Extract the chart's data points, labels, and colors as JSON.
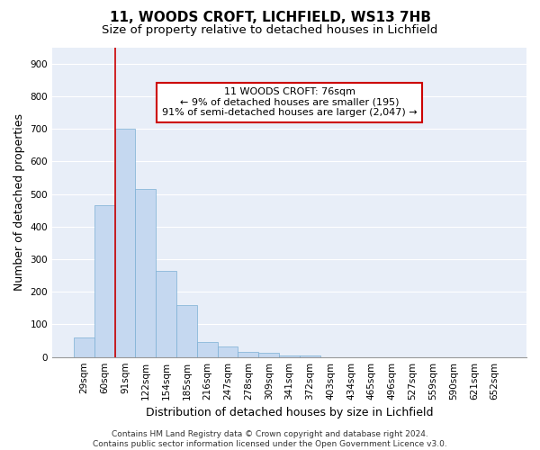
{
  "title_line1": "11, WOODS CROFT, LICHFIELD, WS13 7HB",
  "title_line2": "Size of property relative to detached houses in Lichfield",
  "xlabel": "Distribution of detached houses by size in Lichfield",
  "ylabel": "Number of detached properties",
  "categories": [
    "29sqm",
    "60sqm",
    "91sqm",
    "122sqm",
    "154sqm",
    "185sqm",
    "216sqm",
    "247sqm",
    "278sqm",
    "309sqm",
    "341sqm",
    "372sqm",
    "403sqm",
    "434sqm",
    "465sqm",
    "496sqm",
    "527sqm",
    "559sqm",
    "590sqm",
    "621sqm",
    "652sqm"
  ],
  "values": [
    60,
    465,
    700,
    515,
    265,
    160,
    45,
    32,
    17,
    14,
    5,
    5,
    0,
    0,
    0,
    0,
    0,
    0,
    0,
    0,
    0
  ],
  "bar_color": "#c5d8f0",
  "bar_edge_color": "#7bafd4",
  "vline_color": "#cc0000",
  "vline_pos": 1.53,
  "annotation_text": "11 WOODS CROFT: 76sqm\n← 9% of detached houses are smaller (195)\n91% of semi-detached houses are larger (2,047) →",
  "annotation_box_color": "#ffffff",
  "annotation_box_edge": "#cc0000",
  "ylim": [
    0,
    950
  ],
  "yticks": [
    0,
    100,
    200,
    300,
    400,
    500,
    600,
    700,
    800,
    900
  ],
  "background_color": "#ffffff",
  "plot_bg_color": "#e8eef8",
  "grid_color": "#ffffff",
  "footer_text": "Contains HM Land Registry data © Crown copyright and database right 2024.\nContains public sector information licensed under the Open Government Licence v3.0.",
  "title_fontsize": 11,
  "subtitle_fontsize": 9.5,
  "ylabel_fontsize": 9,
  "xlabel_fontsize": 9,
  "tick_fontsize": 7.5,
  "annotation_fontsize": 8,
  "footer_fontsize": 6.5
}
